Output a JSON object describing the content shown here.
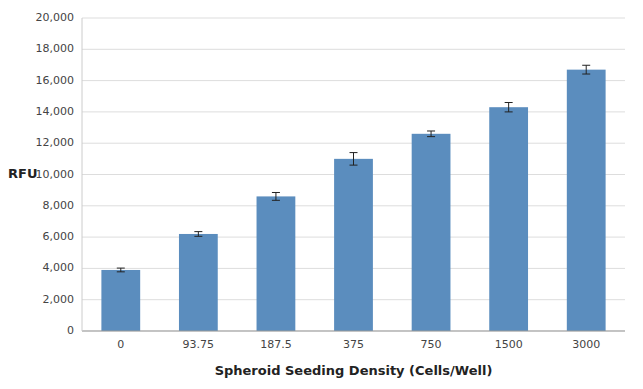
{
  "chart_data": {
    "type": "bar",
    "categories": [
      "0",
      "93.75",
      "187.5",
      "375",
      "750",
      "1500",
      "3000"
    ],
    "values": [
      3900,
      6200,
      8600,
      11000,
      12600,
      14300,
      16700
    ],
    "errors": [
      120,
      150,
      250,
      400,
      180,
      300,
      280
    ],
    "color": "#5b8dbe",
    "xlabel": "Spheroid Seeding Density (Cells/Well)",
    "ylabel": "RFU",
    "ylim": [
      0,
      20000
    ],
    "yticks": [
      0,
      {
        "value": 2000,
        "label": "2,000"
      },
      {
        "value": 4000,
        "label": "4,000"
      },
      {
        "value": 6000,
        "label": "6,000"
      },
      {
        "value": 8000,
        "label": "8,000"
      },
      {
        "value": 10000,
        "label": "10,000"
      },
      {
        "value": 12000,
        "label": "12,000"
      },
      {
        "value": 14000,
        "label": "14,000"
      },
      {
        "value": 16000,
        "label": "16,000"
      },
      {
        "value": 18000,
        "label": "18,000"
      },
      {
        "value": 20000,
        "label": "20,000"
      }
    ],
    "grid": true
  }
}
